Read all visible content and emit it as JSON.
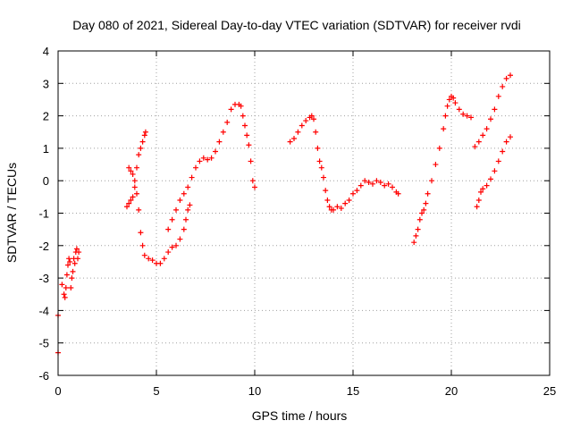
{
  "chart_data": {
    "type": "scatter",
    "title": "Day 080 of 2021, Sidereal Day-to-day VTEC variation (SDTVAR) for receiver rvdi",
    "xlabel": "GPS time / hours",
    "ylabel": "SDTVAR / TECUs",
    "xlim": [
      0,
      25
    ],
    "ylim": [
      -6,
      4
    ],
    "xticks": [
      "0",
      "5",
      "10",
      "15",
      "20",
      "25"
    ],
    "yticks": [
      "-6",
      "-5",
      "-4",
      "-3",
      "-2",
      "-1",
      "0",
      "1",
      "2",
      "3",
      "4"
    ],
    "grid": true,
    "marker": "+",
    "marker_color": "#ff0000",
    "series": [
      {
        "points": [
          [
            0.0,
            -4.15
          ],
          [
            0.0,
            -5.3
          ],
          [
            0.2,
            -3.2
          ],
          [
            0.3,
            -3.5
          ],
          [
            0.35,
            -3.6
          ],
          [
            0.4,
            -3.3
          ],
          [
            0.45,
            -2.9
          ],
          [
            0.5,
            -2.6
          ],
          [
            0.55,
            -2.4
          ],
          [
            0.6,
            -2.5
          ],
          [
            0.65,
            -3.3
          ],
          [
            0.7,
            -3.0
          ],
          [
            0.75,
            -2.8
          ],
          [
            0.8,
            -2.4
          ],
          [
            0.85,
            -2.55
          ],
          [
            0.9,
            -2.2
          ],
          [
            0.95,
            -2.1
          ],
          [
            1.0,
            -2.4
          ],
          [
            1.05,
            -2.2
          ],
          [
            3.5,
            -0.8
          ],
          [
            3.6,
            -0.7
          ],
          [
            3.7,
            -0.6
          ],
          [
            3.8,
            -0.5
          ],
          [
            3.9,
            -0.2
          ],
          [
            4.0,
            -0.4
          ],
          [
            4.1,
            -0.9
          ],
          [
            4.2,
            -1.6
          ],
          [
            4.3,
            -2.0
          ],
          [
            4.4,
            -2.3
          ],
          [
            4.6,
            -2.4
          ],
          [
            4.8,
            -2.45
          ],
          [
            5.0,
            -2.55
          ],
          [
            5.2,
            -2.55
          ],
          [
            5.4,
            -2.4
          ],
          [
            5.6,
            -2.2
          ],
          [
            5.8,
            -2.05
          ],
          [
            6.0,
            -2.0
          ],
          [
            6.2,
            -1.8
          ],
          [
            6.4,
            -1.5
          ],
          [
            6.5,
            -1.2
          ],
          [
            6.6,
            -0.9
          ],
          [
            6.7,
            -0.75
          ],
          [
            3.6,
            0.4
          ],
          [
            3.7,
            0.3
          ],
          [
            3.8,
            0.2
          ],
          [
            3.9,
            0.0
          ],
          [
            4.0,
            0.4
          ],
          [
            4.1,
            0.8
          ],
          [
            4.2,
            1.0
          ],
          [
            4.3,
            1.2
          ],
          [
            4.4,
            1.4
          ],
          [
            4.45,
            1.5
          ],
          [
            5.6,
            -1.5
          ],
          [
            5.8,
            -1.2
          ],
          [
            6.0,
            -0.9
          ],
          [
            6.2,
            -0.6
          ],
          [
            6.4,
            -0.4
          ],
          [
            6.6,
            -0.2
          ],
          [
            6.8,
            0.1
          ],
          [
            7.0,
            0.4
          ],
          [
            7.2,
            0.6
          ],
          [
            7.4,
            0.7
          ],
          [
            7.6,
            0.65
          ],
          [
            7.8,
            0.7
          ],
          [
            8.0,
            0.9
          ],
          [
            8.2,
            1.2
          ],
          [
            8.4,
            1.5
          ],
          [
            8.6,
            1.8
          ],
          [
            8.8,
            2.2
          ],
          [
            9.0,
            2.35
          ],
          [
            9.2,
            2.35
          ],
          [
            9.3,
            2.3
          ],
          [
            9.4,
            2.0
          ],
          [
            9.5,
            1.7
          ],
          [
            9.6,
            1.4
          ],
          [
            9.7,
            1.1
          ],
          [
            9.8,
            0.6
          ],
          [
            9.9,
            0.0
          ],
          [
            10.0,
            -0.2
          ],
          [
            11.8,
            1.2
          ],
          [
            12.0,
            1.3
          ],
          [
            12.2,
            1.5
          ],
          [
            12.4,
            1.7
          ],
          [
            12.6,
            1.85
          ],
          [
            12.8,
            1.95
          ],
          [
            12.9,
            2.0
          ],
          [
            13.0,
            1.9
          ],
          [
            13.1,
            1.5
          ],
          [
            13.2,
            1.0
          ],
          [
            13.3,
            0.6
          ],
          [
            13.4,
            0.4
          ],
          [
            13.5,
            0.1
          ],
          [
            13.6,
            -0.3
          ],
          [
            13.7,
            -0.6
          ],
          [
            13.8,
            -0.8
          ],
          [
            13.9,
            -0.9
          ],
          [
            14.0,
            -0.9
          ],
          [
            14.2,
            -0.8
          ],
          [
            14.4,
            -0.85
          ],
          [
            14.6,
            -0.7
          ],
          [
            14.8,
            -0.6
          ],
          [
            15.0,
            -0.4
          ],
          [
            15.2,
            -0.3
          ],
          [
            15.4,
            -0.15
          ],
          [
            15.6,
            0.0
          ],
          [
            15.8,
            -0.05
          ],
          [
            16.0,
            -0.1
          ],
          [
            16.2,
            0.0
          ],
          [
            16.4,
            -0.05
          ],
          [
            16.6,
            -0.15
          ],
          [
            16.8,
            -0.1
          ],
          [
            17.0,
            -0.2
          ],
          [
            17.2,
            -0.35
          ],
          [
            17.3,
            -0.4
          ],
          [
            18.1,
            -1.9
          ],
          [
            18.2,
            -1.7
          ],
          [
            18.3,
            -1.5
          ],
          [
            18.4,
            -1.2
          ],
          [
            18.5,
            -1.0
          ],
          [
            18.6,
            -0.9
          ],
          [
            18.7,
            -0.7
          ],
          [
            18.8,
            -0.4
          ],
          [
            19.0,
            0.0
          ],
          [
            19.2,
            0.5
          ],
          [
            19.4,
            1.0
          ],
          [
            19.6,
            1.6
          ],
          [
            19.7,
            2.0
          ],
          [
            19.8,
            2.3
          ],
          [
            19.9,
            2.5
          ],
          [
            20.0,
            2.6
          ],
          [
            20.1,
            2.55
          ],
          [
            20.2,
            2.4
          ],
          [
            20.4,
            2.2
          ],
          [
            20.6,
            2.05
          ],
          [
            20.8,
            2.0
          ],
          [
            21.0,
            1.95
          ],
          [
            21.2,
            1.05
          ],
          [
            21.4,
            1.2
          ],
          [
            21.6,
            1.4
          ],
          [
            21.8,
            1.6
          ],
          [
            22.0,
            1.9
          ],
          [
            22.2,
            2.2
          ],
          [
            22.4,
            2.6
          ],
          [
            22.6,
            2.9
          ],
          [
            22.8,
            3.15
          ],
          [
            23.0,
            3.25
          ],
          [
            21.3,
            -0.8
          ],
          [
            21.4,
            -0.6
          ],
          [
            21.5,
            -0.35
          ],
          [
            21.6,
            -0.25
          ],
          [
            21.8,
            -0.15
          ],
          [
            22.0,
            0.05
          ],
          [
            22.2,
            0.3
          ],
          [
            22.4,
            0.6
          ],
          [
            22.6,
            0.9
          ],
          [
            22.8,
            1.2
          ],
          [
            23.0,
            1.35
          ]
        ]
      }
    ]
  }
}
